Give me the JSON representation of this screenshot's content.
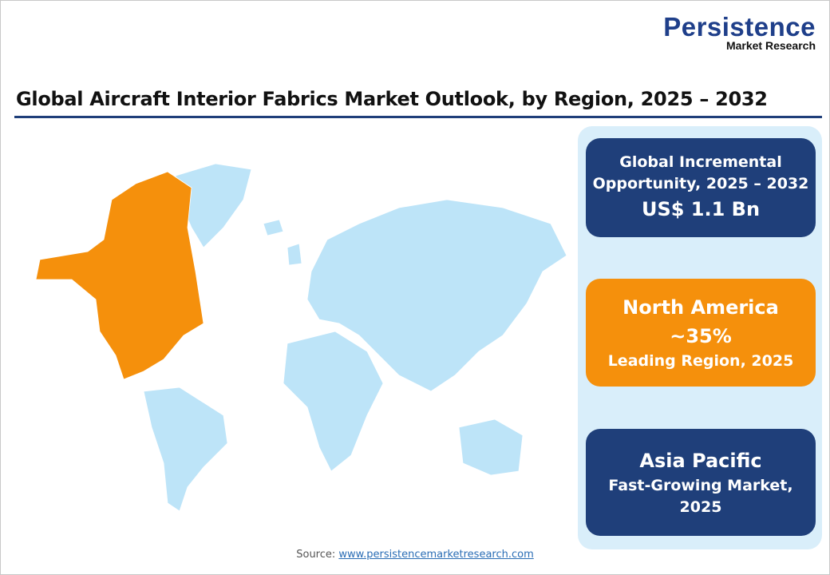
{
  "logo": {
    "main": "Persistence",
    "sub": "Market Research"
  },
  "title": "Global Aircraft Interior Fabrics Market Outlook, by Region, 2025 – 2032",
  "cards": [
    {
      "line1": "Global Incremental",
      "line2": "Opportunity, 2025 – 2032",
      "value": "US$ 1.1 Bn"
    },
    {
      "region": "North America",
      "share": "~35%",
      "caption": "Leading Region, 2025"
    },
    {
      "region": "Asia Pacific",
      "caption1": "Fast-Growing Market,",
      "caption2": "2025"
    }
  ],
  "map": {
    "highlighted_region": "North America",
    "highlight_color": "#f5900c",
    "base_color": "#bde4f8"
  },
  "source": {
    "label": "Source:",
    "link": "www.persistencemarketresearch.com"
  },
  "colors": {
    "navy": "#1f3f7a",
    "orange": "#f5900c",
    "panel": "#d9eefa"
  }
}
